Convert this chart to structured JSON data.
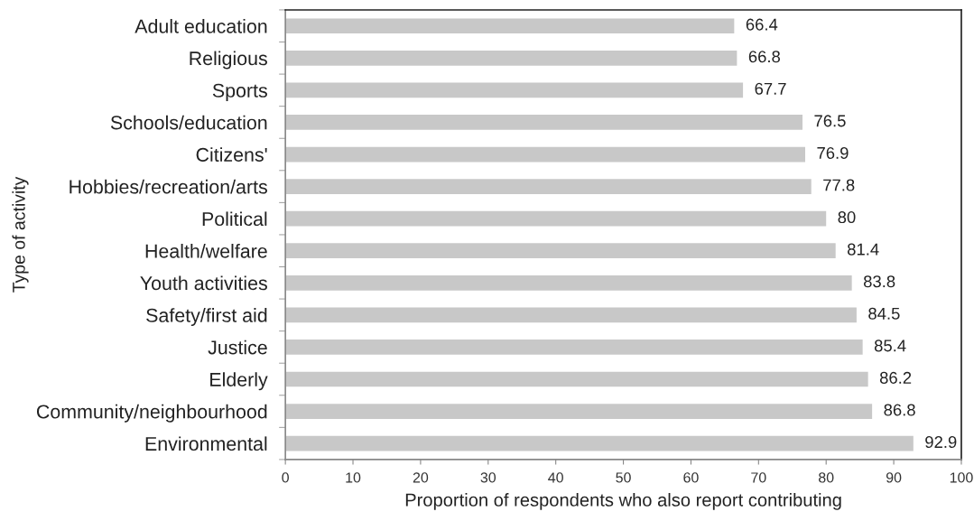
{
  "chart_data": {
    "type": "bar",
    "orientation": "horizontal",
    "categories": [
      "Adult education",
      "Religious",
      "Sports",
      "Schools/education",
      "Citizens'",
      "Hobbies/recreation/arts",
      "Political",
      "Health/welfare",
      "Youth activities",
      "Safety/first aid",
      "Justice",
      "Elderly",
      "Community/neighbourhood",
      "Environmental"
    ],
    "values": [
      66.4,
      66.8,
      67.7,
      76.5,
      76.9,
      77.8,
      80,
      81.4,
      83.8,
      84.5,
      85.4,
      86.2,
      86.8,
      92.9
    ],
    "color": "#c8c8c8",
    "data_labels": true,
    "xlim": [
      0,
      100
    ],
    "xticks": [
      0,
      10,
      20,
      30,
      40,
      50,
      60,
      70,
      80,
      90,
      100
    ],
    "xlabel": "Proportion of respondents who also report contributing",
    "ylabel": "Type of activity"
  }
}
